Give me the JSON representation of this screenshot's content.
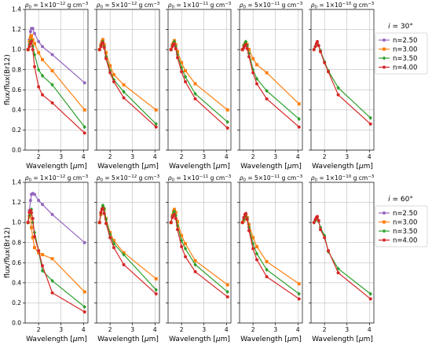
{
  "chart_data": {
    "type": "line",
    "ylabel": "flux/flux(Br12)",
    "xlabel": "Wavelength [$\\mu$m]",
    "xlabel_parts": {
      "main": "Wavelength [",
      "mu": "μ",
      "rest": "m]"
    },
    "xlim": [
      1.4,
      4.2
    ],
    "ylim": [
      0.0,
      1.4
    ],
    "xticks": [
      2,
      3,
      4
    ],
    "yticks": [
      0.0,
      0.2,
      0.4,
      0.6,
      0.8,
      1.0,
      1.2,
      1.4
    ],
    "grid": true,
    "legend_placement": "right",
    "series_styles": [
      {
        "name": "n=2.50",
        "color": "#9467bd",
        "marker": "circle"
      },
      {
        "name": "n=3.00",
        "color": "#ff7f0e",
        "marker": "square"
      },
      {
        "name": "n=3.50",
        "color": "#2ca02c",
        "marker": "diamond"
      },
      {
        "name": "n=4.00",
        "color": "#d62728",
        "marker": "circle"
      }
    ],
    "x": [
      1.53,
      1.59,
      1.64,
      1.68,
      1.74,
      1.82,
      2.0,
      2.17,
      2.61,
      4.05
    ],
    "panel_titles": [
      {
        "rho": "ρ",
        "sub": "0",
        "eq": " = 1×10",
        "exp": "−12",
        "unit": " g cm",
        "uexp": "−3"
      },
      {
        "rho": "ρ",
        "sub": "0",
        "eq": " = 5×10",
        "exp": "−12",
        "unit": " g cm",
        "uexp": "−3"
      },
      {
        "rho": "ρ",
        "sub": "0",
        "eq": " = 1×10",
        "exp": "−11",
        "unit": " g cm",
        "uexp": "−3"
      },
      {
        "rho": "ρ",
        "sub": "0",
        "eq": " = 5×10",
        "exp": "−11",
        "unit": " g cm",
        "uexp": "−3"
      },
      {
        "rho": "ρ",
        "sub": "0",
        "eq": " = 1×10",
        "exp": "−10",
        "unit": " g cm",
        "uexp": "−3"
      }
    ],
    "rows": [
      {
        "label": "i = 30°",
        "label_parts": {
          "var": "i",
          "val": " = 30°"
        },
        "panels": [
          {
            "series": [
              {
                "name": "n=2.50",
                "values": [
                  1.0,
                  1.1,
                  1.18,
                  1.21,
                  1.21,
                  1.16,
                  1.08,
                  1.03,
                  0.95,
                  0.67
                ]
              },
              {
                "name": "n=3.00",
                "values": [
                  1.0,
                  1.08,
                  1.12,
                  1.14,
                  1.1,
                  1.06,
                  0.97,
                  0.9,
                  0.79,
                  0.4
                ]
              },
              {
                "name": "n=3.50",
                "values": [
                  1.0,
                  1.05,
                  1.08,
                  1.09,
                  1.03,
                  0.95,
                  0.8,
                  0.74,
                  0.65,
                  0.23
                ]
              },
              {
                "name": "n=4.00",
                "values": [
                  1.0,
                  1.03,
                  1.06,
                  1.08,
                  1.0,
                  0.83,
                  0.63,
                  0.55,
                  0.47,
                  0.17
                ]
              }
            ]
          },
          {
            "series": [
              {
                "name": "n=2.50",
                "values": [
                  null,
                  null,
                  null,
                  null,
                  null,
                  null,
                  null,
                  null,
                  null,
                  null
                ]
              },
              {
                "name": "n=3.00",
                "values": [
                  1.0,
                  1.05,
                  1.08,
                  1.1,
                  1.05,
                  0.97,
                  0.84,
                  0.75,
                  0.65,
                  0.4
                ]
              },
              {
                "name": "n=3.50",
                "values": [
                  1.0,
                  1.04,
                  1.07,
                  1.08,
                  1.03,
                  0.93,
                  0.79,
                  0.7,
                  0.58,
                  0.26
                ]
              },
              {
                "name": "n=4.00",
                "values": [
                  1.0,
                  1.03,
                  1.06,
                  1.07,
                  1.02,
                  0.91,
                  0.77,
                  0.68,
                  0.52,
                  0.23
                ]
              }
            ]
          },
          {
            "series": [
              {
                "name": "n=2.50",
                "values": [
                  null,
                  null,
                  null,
                  null,
                  null,
                  null,
                  null,
                  null,
                  null,
                  null
                ]
              },
              {
                "name": "n=3.00",
                "values": [
                  1.0,
                  1.05,
                  1.07,
                  1.09,
                  1.05,
                  0.98,
                  0.87,
                  0.79,
                  0.66,
                  0.4
                ]
              },
              {
                "name": "n=3.50",
                "values": [
                  1.0,
                  1.04,
                  1.06,
                  1.08,
                  1.03,
                  0.95,
                  0.82,
                  0.73,
                  0.56,
                  0.28
                ]
              },
              {
                "name": "n=4.00",
                "values": [
                  1.0,
                  1.03,
                  1.05,
                  1.06,
                  1.01,
                  0.92,
                  0.78,
                  0.68,
                  0.51,
                  0.22
                ]
              }
            ]
          },
          {
            "series": [
              {
                "name": "n=2.50",
                "values": [
                  null,
                  null,
                  null,
                  null,
                  null,
                  null,
                  null,
                  null,
                  null,
                  null
                ]
              },
              {
                "name": "n=3.00",
                "values": [
                  1.0,
                  1.04,
                  1.06,
                  1.07,
                  1.05,
                  1.0,
                  0.91,
                  0.85,
                  0.77,
                  0.46
                ]
              },
              {
                "name": "n=3.50",
                "values": [
                  1.0,
                  1.04,
                  1.06,
                  1.08,
                  1.04,
                  0.96,
                  0.8,
                  0.71,
                  0.59,
                  0.31
                ]
              },
              {
                "name": "n=4.00",
                "values": [
                  1.0,
                  1.02,
                  1.04,
                  1.05,
                  1.01,
                  0.93,
                  0.77,
                  0.66,
                  0.51,
                  0.23
                ]
              }
            ]
          },
          {
            "series": [
              {
                "name": "n=2.50",
                "values": [
                  null,
                  null,
                  null,
                  null,
                  null,
                  null,
                  null,
                  null,
                  null,
                  null
                ]
              },
              {
                "name": "n=3.00",
                "values": [
                  null,
                  null,
                  null,
                  null,
                  null,
                  null,
                  null,
                  null,
                  null,
                  null
                ]
              },
              {
                "name": "n=3.50",
                "values": [
                  1.0,
                  1.03,
                  1.05,
                  1.06,
                  1.04,
                  0.99,
                  0.88,
                  0.79,
                  0.62,
                  0.32
                ]
              },
              {
                "name": "n=4.00",
                "values": [
                  1.0,
                  1.03,
                  1.06,
                  1.08,
                  1.04,
                  0.98,
                  0.87,
                  0.78,
                  0.55,
                  0.26
                ]
              }
            ]
          }
        ]
      },
      {
        "label": "i = 60°",
        "label_parts": {
          "var": "i",
          "val": " = 60°"
        },
        "panels": [
          {
            "series": [
              {
                "name": "n=2.50",
                "values": [
                  1.0,
                  1.12,
                  1.22,
                  1.28,
                  1.29,
                  1.28,
                  1.22,
                  1.18,
                  1.08,
                  0.8
                ]
              },
              {
                "name": "n=3.00",
                "values": [
                  1.0,
                  1.06,
                  1.08,
                  0.95,
                  0.85,
                  0.75,
                  0.7,
                  0.68,
                  0.64,
                  0.31
                ]
              },
              {
                "name": "n=3.50",
                "values": [
                  1.0,
                  1.07,
                  1.1,
                  1.13,
                  1.0,
                  0.9,
                  0.72,
                  0.52,
                  0.42,
                  0.16
                ]
              },
              {
                "name": "n=4.00",
                "values": [
                  1.0,
                  1.1,
                  1.12,
                  1.1,
                  1.04,
                  0.86,
                  0.72,
                  0.57,
                  0.3,
                  0.11
                ]
              }
            ]
          },
          {
            "series": [
              {
                "name": "n=2.50",
                "values": [
                  null,
                  null,
                  null,
                  null,
                  null,
                  null,
                  null,
                  null,
                  null,
                  null
                ]
              },
              {
                "name": "n=3.00",
                "values": [
                  1.0,
                  1.08,
                  1.13,
                  1.16,
                  1.13,
                  1.04,
                  0.9,
                  0.82,
                  0.7,
                  0.44
                ]
              },
              {
                "name": "n=3.50",
                "values": [
                  1.0,
                  1.09,
                  1.14,
                  1.17,
                  1.14,
                  1.03,
                  0.88,
                  0.79,
                  0.68,
                  0.33
                ]
              },
              {
                "name": "n=4.00",
                "values": [
                  1.0,
                  1.1,
                  1.13,
                  1.14,
                  1.09,
                  0.99,
                  0.85,
                  0.75,
                  0.58,
                  0.29
                ]
              }
            ]
          },
          {
            "series": [
              {
                "name": "n=2.50",
                "values": [
                  null,
                  null,
                  null,
                  null,
                  null,
                  null,
                  null,
                  null,
                  null,
                  null
                ]
              },
              {
                "name": "n=3.00",
                "values": [
                  1.0,
                  1.07,
                  1.11,
                  1.13,
                  1.1,
                  1.01,
                  0.87,
                  0.79,
                  0.62,
                  0.38
                ]
              },
              {
                "name": "n=3.50",
                "values": [
                  1.0,
                  1.06,
                  1.09,
                  1.11,
                  1.07,
                  0.97,
                  0.82,
                  0.74,
                  0.58,
                  0.31
                ]
              },
              {
                "name": "n=4.00",
                "values": [
                  1.0,
                  1.05,
                  1.07,
                  1.08,
                  1.04,
                  0.93,
                  0.76,
                  0.66,
                  0.51,
                  0.26
                ]
              }
            ]
          },
          {
            "series": [
              {
                "name": "n=2.50",
                "values": [
                  null,
                  null,
                  null,
                  null,
                  null,
                  null,
                  null,
                  null,
                  null,
                  null
                ]
              },
              {
                "name": "n=3.00",
                "values": [
                  1.0,
                  1.02,
                  1.04,
                  1.07,
                  1.05,
                  0.98,
                  0.85,
                  0.76,
                  0.61,
                  0.39
                ]
              },
              {
                "name": "n=3.50",
                "values": [
                  1.0,
                  1.03,
                  1.06,
                  1.08,
                  1.04,
                  0.95,
                  0.79,
                  0.69,
                  0.53,
                  0.29
                ]
              },
              {
                "name": "n=4.00",
                "values": [
                  1.0,
                  1.05,
                  1.08,
                  1.09,
                  1.03,
                  0.92,
                  0.74,
                  0.63,
                  0.46,
                  0.24
                ]
              }
            ]
          },
          {
            "series": [
              {
                "name": "n=2.50",
                "values": [
                  null,
                  null,
                  null,
                  null,
                  null,
                  null,
                  null,
                  null,
                  null,
                  null
                ]
              },
              {
                "name": "n=3.00",
                "values": [
                  null,
                  null,
                  null,
                  null,
                  null,
                  null,
                  null,
                  null,
                  null,
                  null
                ]
              },
              {
                "name": "n=3.50",
                "values": [
                  1.0,
                  1.02,
                  1.04,
                  1.05,
                  1.01,
                  0.95,
                  0.87,
                  0.71,
                  0.54,
                  0.29
                ]
              },
              {
                "name": "n=4.00",
                "values": [
                  1.0,
                  1.03,
                  1.05,
                  1.06,
                  1.02,
                  0.93,
                  0.85,
                  0.72,
                  0.5,
                  0.24
                ]
              }
            ]
          }
        ]
      }
    ]
  }
}
